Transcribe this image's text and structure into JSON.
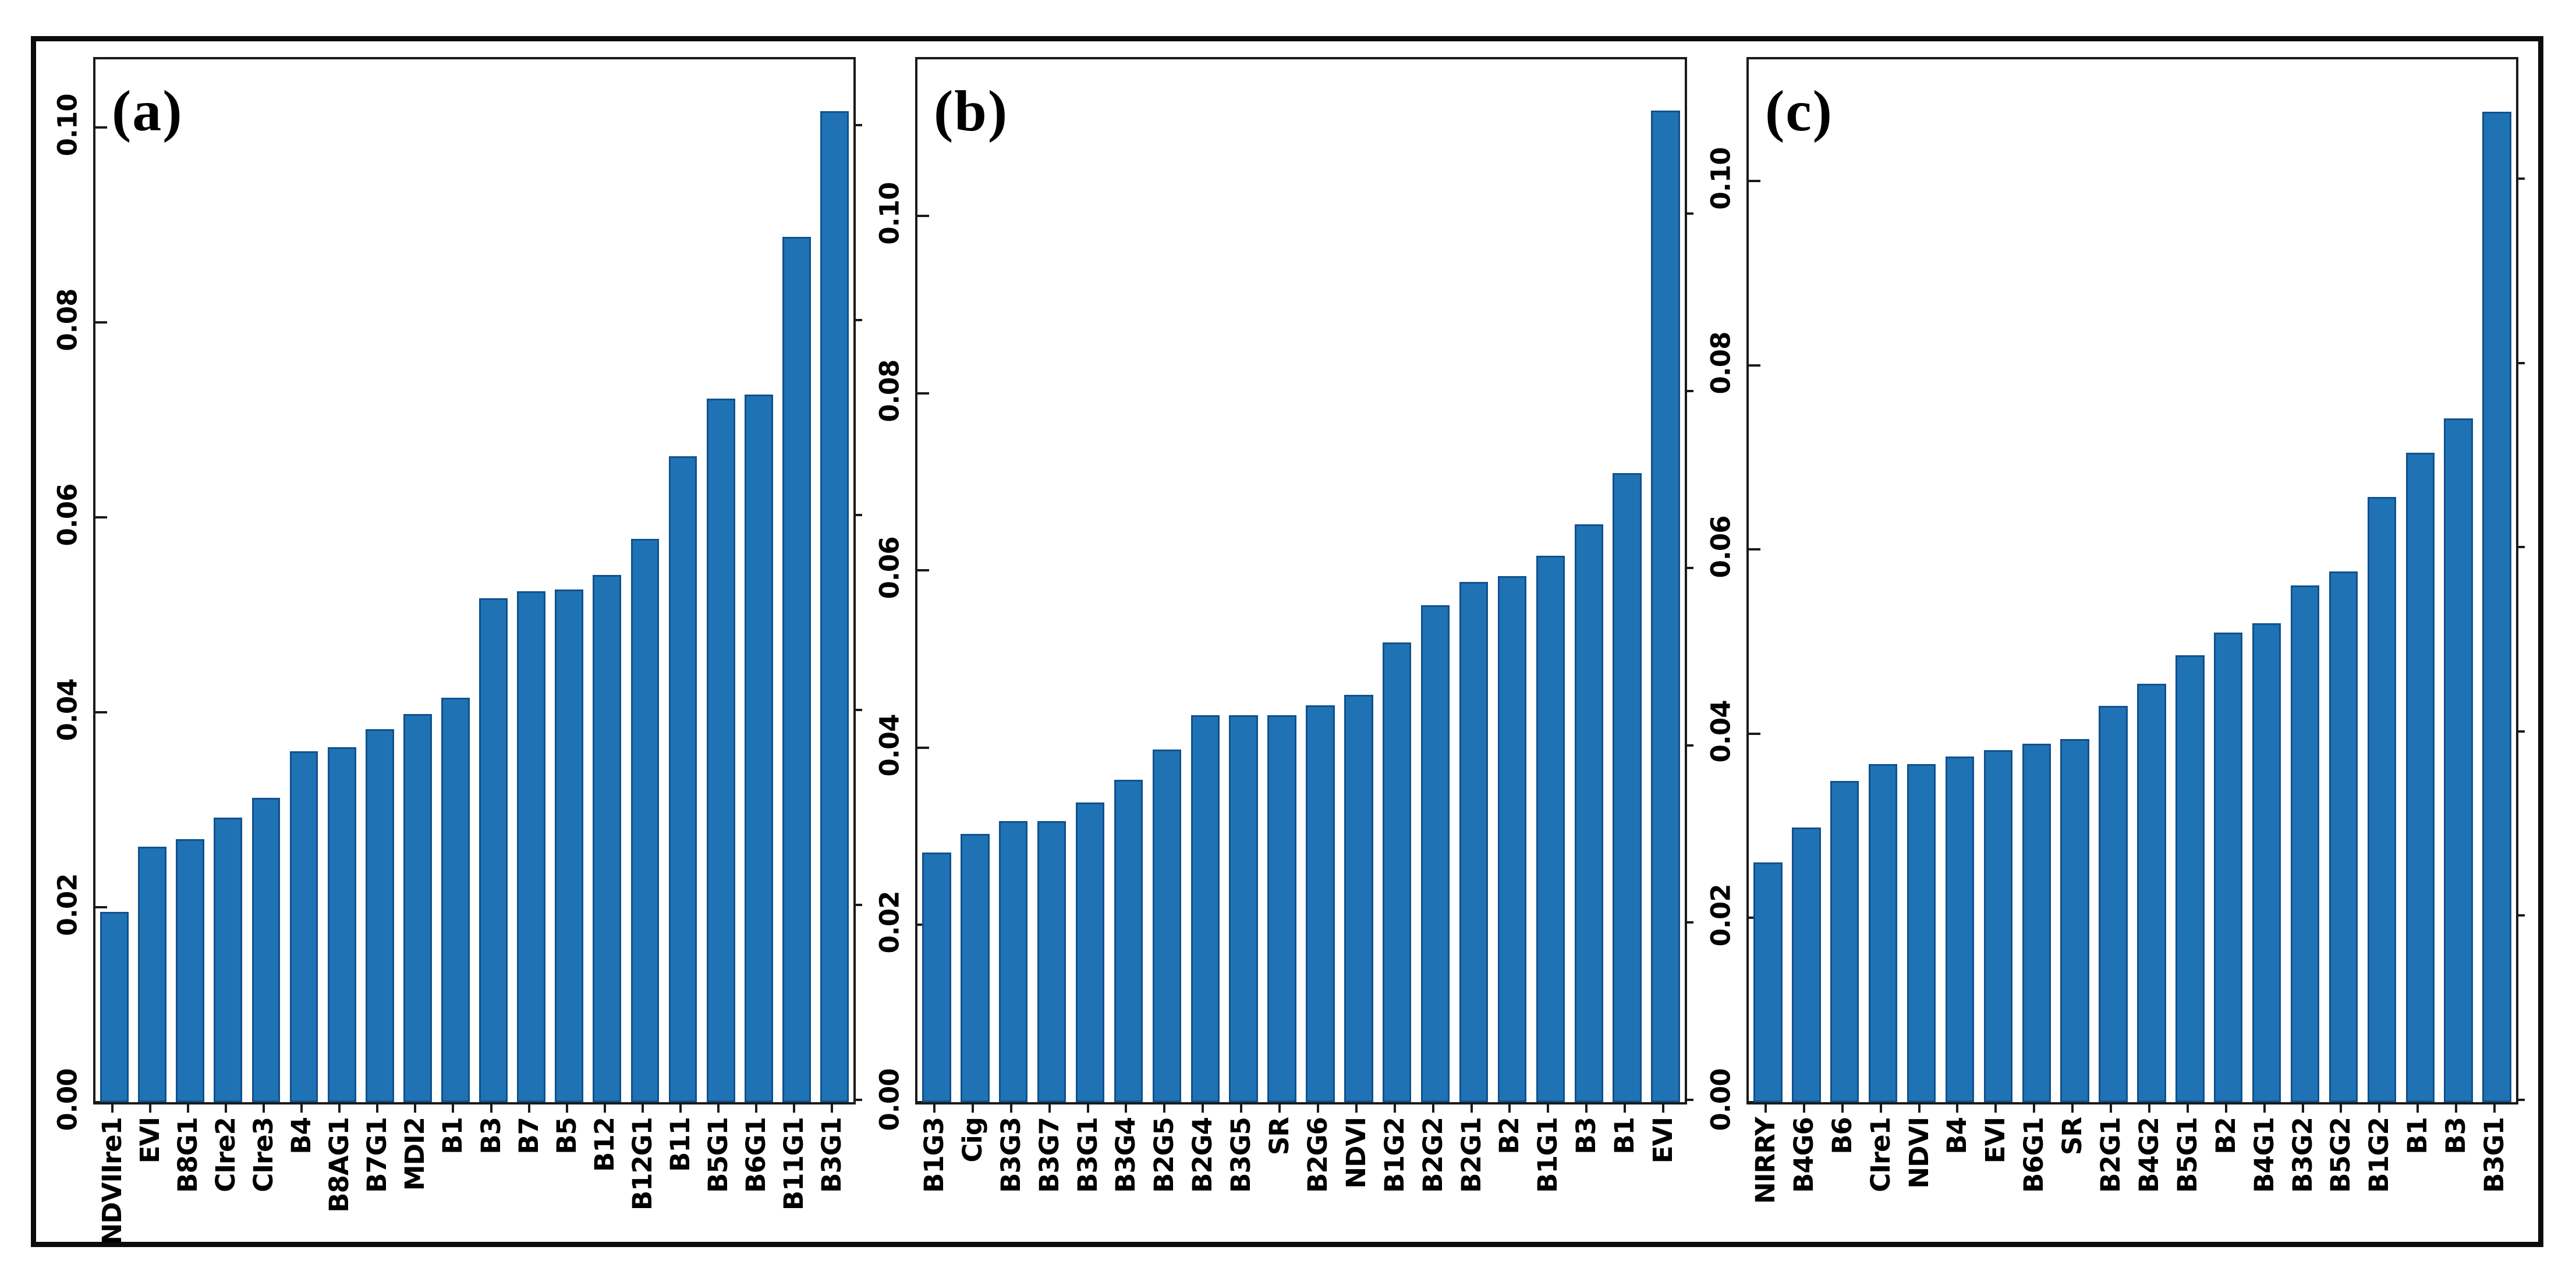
{
  "figure": {
    "background": "#ffffff",
    "frame_color": "#0c0c0c",
    "axis_color": "#1a1a1a",
    "text_color": "#000000"
  },
  "chart_data": [
    {
      "type": "bar",
      "panel_label": "(a)",
      "title": "",
      "xlabel": "",
      "ylabel": "",
      "grid": false,
      "legend_position": "none",
      "bar_color": "#1f73b4",
      "bar_edge_color": "#11518d",
      "ylim": [
        0,
        0.107
      ],
      "yticks": [
        0,
        0.02,
        0.04,
        0.06,
        0.08,
        0.1
      ],
      "ytick_labels": [
        "0.00",
        "0.02",
        "0.04",
        "0.06",
        "0.08",
        "0.10"
      ],
      "categories": [
        "NDVIIre1",
        "EVI",
        "B8G1",
        "CIre2",
        "CIre3",
        "B4",
        "B8AG1",
        "B7G1",
        "MDI2",
        "B1",
        "B3",
        "B7",
        "B5",
        "B12",
        "B12G1",
        "B11",
        "B5G1",
        "B6G1",
        "B11G1",
        "B3G1"
      ],
      "values": [
        0.0195,
        0.0262,
        0.027,
        0.0292,
        0.0312,
        0.036,
        0.0364,
        0.0383,
        0.0398,
        0.0415,
        0.0517,
        0.0524,
        0.0526,
        0.0541,
        0.0578,
        0.0663,
        0.0722,
        0.0726,
        0.0888,
        0.1017
      ]
    },
    {
      "type": "bar",
      "panel_label": "(b)",
      "title": "",
      "xlabel": "",
      "ylabel": "",
      "grid": false,
      "legend_position": "none",
      "bar_color": "#1f73b4",
      "bar_edge_color": "#11518d",
      "ylim": [
        0,
        0.1177
      ],
      "yticks": [
        0,
        0.02,
        0.04,
        0.06,
        0.08,
        0.1
      ],
      "ytick_labels": [
        "0.00",
        "0.02",
        "0.04",
        "0.06",
        "0.08",
        "0.10"
      ],
      "categories": [
        "B1G3",
        "Cig",
        "B3G3",
        "B3G7",
        "B3G1",
        "B3G4",
        "B2G5",
        "B2G4",
        "B3G5",
        "SR",
        "B2G6",
        "NDVI",
        "B1G2",
        "B2G2",
        "B2G1",
        "B2",
        "B1G1",
        "B3",
        "B1",
        "EVI"
      ],
      "values": [
        0.0282,
        0.0303,
        0.0317,
        0.0317,
        0.0338,
        0.0364,
        0.0398,
        0.0437,
        0.0437,
        0.0437,
        0.0448,
        0.046,
        0.0519,
        0.0561,
        0.0587,
        0.0594,
        0.0617,
        0.0652,
        0.071,
        0.1119
      ]
    },
    {
      "type": "bar",
      "panel_label": "(c)",
      "title": "",
      "xlabel": "",
      "ylabel": "",
      "grid": false,
      "legend_position": "none",
      "bar_color": "#1f73b4",
      "bar_edge_color": "#11518d",
      "ylim": [
        0,
        0.1132
      ],
      "yticks": [
        0,
        0.02,
        0.04,
        0.06,
        0.08,
        0.1
      ],
      "ytick_labels": [
        "0.00",
        "0.02",
        "0.04",
        "0.06",
        "0.08",
        "0.10"
      ],
      "categories": [
        "NIRRY",
        "B4G6",
        "B6",
        "CIre1",
        "NDVI",
        "B4",
        "EVI",
        "B6G1",
        "SR",
        "B2G1",
        "B4G2",
        "B5G1",
        "B2",
        "B4G1",
        "B3G2",
        "B5G2",
        "B1G2",
        "B1",
        "B3",
        "B3G1"
      ],
      "values": [
        0.026,
        0.0298,
        0.0349,
        0.0367,
        0.0367,
        0.0375,
        0.0382,
        0.0389,
        0.0394,
        0.043,
        0.0454,
        0.0485,
        0.051,
        0.052,
        0.0561,
        0.0576,
        0.0657,
        0.0705,
        0.0742,
        0.1075
      ]
    }
  ]
}
